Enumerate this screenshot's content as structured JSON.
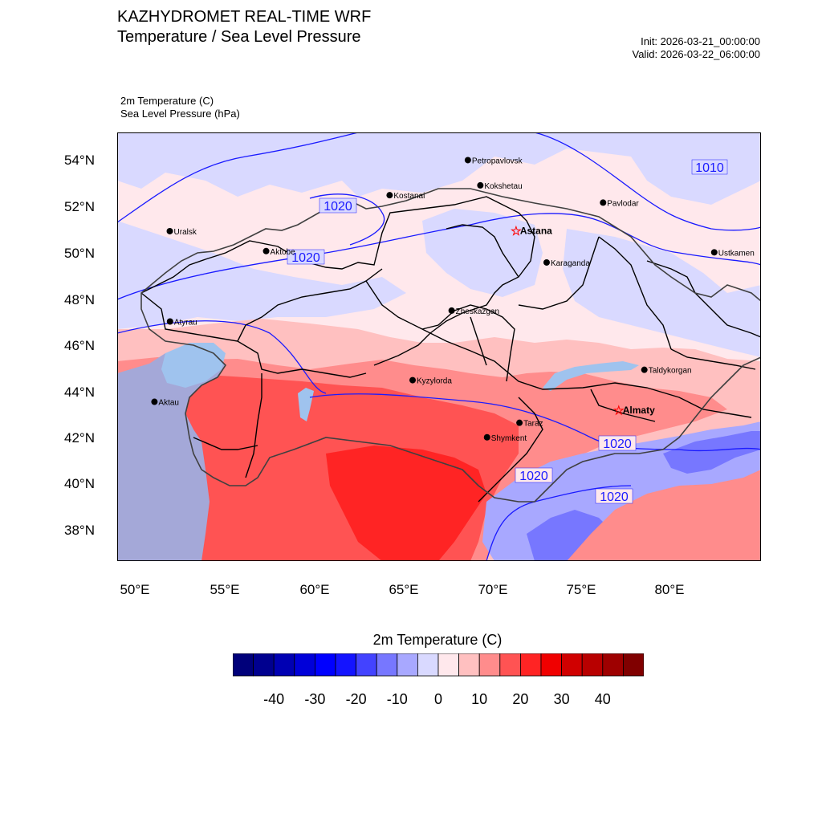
{
  "header": {
    "title": "KAZHYDROMET REAL-TIME WRF",
    "subtitle": "Temperature / Sea Level Pressure",
    "init": "Init: 2026-03-21_00:00:00",
    "valid": "Valid: 2026-03-22_06:00:00"
  },
  "variables": {
    "temperature": "2m Temperature   (C)",
    "pressure": "Sea Level Pressure   (hPa)"
  },
  "map": {
    "lat_labels": [
      "54°N",
      "52°N",
      "50°N",
      "48°N",
      "46°N",
      "44°N",
      "42°N",
      "40°N",
      "38°N"
    ],
    "lon_labels": [
      "50°E",
      "55°E",
      "60°E",
      "65°E",
      "70°E",
      "75°E",
      "80°E"
    ],
    "cities": [
      {
        "name": "Petropavlovsk",
        "lon": 68.7,
        "lat": 54.3,
        "capital": false
      },
      {
        "name": "Kostanai",
        "lon": 64.2,
        "lat": 52.8,
        "capital": false
      },
      {
        "name": "Kokshetau",
        "lon": 69.4,
        "lat": 53.2,
        "capital": false
      },
      {
        "name": "Pavlodar",
        "lon": 76.4,
        "lat": 52.3,
        "capital": false
      },
      {
        "name": "Uralsk",
        "lon": 51.7,
        "lat": 51.0,
        "capital": false
      },
      {
        "name": "Astana",
        "lon": 71.4,
        "lat": 51.2,
        "capital": true
      },
      {
        "name": "Aktobe",
        "lon": 57.2,
        "lat": 50.3,
        "capital": false
      },
      {
        "name": "Ustkamen",
        "lon": 82.6,
        "lat": 49.9,
        "capital": false
      },
      {
        "name": "Karaganda",
        "lon": 73.1,
        "lat": 49.8,
        "capital": false
      },
      {
        "name": "Atyrau",
        "lon": 51.9,
        "lat": 47.1,
        "capital": false
      },
      {
        "name": "Zheskazgan",
        "lon": 67.7,
        "lat": 47.8,
        "capital": false
      },
      {
        "name": "Taldykorgan",
        "lon": 78.4,
        "lat": 45.0,
        "capital": false
      },
      {
        "name": "Aktau",
        "lon": 51.2,
        "lat": 43.6,
        "capital": false
      },
      {
        "name": "Kyzylorda",
        "lon": 65.5,
        "lat": 44.8,
        "capital": false
      },
      {
        "name": "Almaty",
        "lon": 76.9,
        "lat": 43.3,
        "capital": true
      },
      {
        "name": "Taraz",
        "lon": 71.4,
        "lat": 42.9,
        "capital": false
      },
      {
        "name": "Shymkent",
        "lon": 69.6,
        "lat": 42.3,
        "capital": false
      }
    ],
    "pressure_labels": [
      "1010",
      "1020",
      "1020",
      "1020",
      "1020",
      "1020"
    ]
  },
  "colorbar": {
    "title": "2m Temperature  (C)",
    "colors": [
      "#00007a",
      "#00008f",
      "#0000b3",
      "#0000d9",
      "#0000ff",
      "#1414ff",
      "#4343ff",
      "#7777ff",
      "#a8a8ff",
      "#d9d9ff",
      "#ffe8ec",
      "#ffc0c0",
      "#ff8c8c",
      "#ff5353",
      "#ff2424",
      "#f00000",
      "#d00000",
      "#b80000",
      "#9e0000",
      "#800000"
    ],
    "tick_labels": [
      "-40",
      "-30",
      "-20",
      "-10",
      "0",
      "10",
      "20",
      "30",
      "40"
    ],
    "levels": [
      -40,
      -30,
      -20,
      -10,
      0,
      10,
      20,
      30,
      40
    ]
  },
  "colors": {
    "isobar": "#1a1aff",
    "water": "#9fc3ee",
    "border": "#000000"
  }
}
